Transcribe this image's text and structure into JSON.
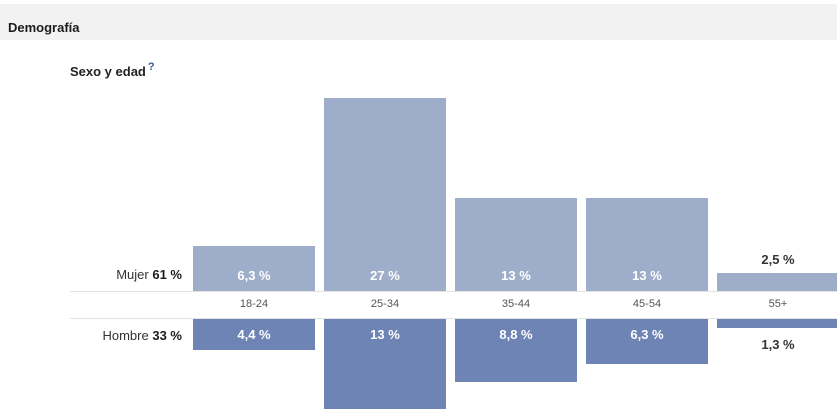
{
  "section": {
    "title": "Demografía"
  },
  "chart_data": {
    "type": "bar",
    "title": "Sexo y edad",
    "help_label": "?",
    "categories": [
      "18-24",
      "25-34",
      "35-44",
      "45-54",
      "55+"
    ],
    "series": [
      {
        "name": "Mujer",
        "total_label": "61 %",
        "values": [
          6.3,
          27,
          13,
          13,
          2.5
        ],
        "labels": [
          "6,3 %",
          "27 %",
          "13 %",
          "13 %",
          "2,5 %"
        ]
      },
      {
        "name": "Hombre",
        "total_label": "33 %",
        "values": [
          4.4,
          13,
          8.8,
          6.3,
          1.3
        ],
        "labels": [
          "4,4 %",
          "13 %",
          "8,8 %",
          "6,3 %",
          "1,3 %"
        ]
      }
    ],
    "colors": {
      "Mujer": "#9eaeca",
      "Hombre": "#6d84b4"
    },
    "layout": "mirrored"
  }
}
